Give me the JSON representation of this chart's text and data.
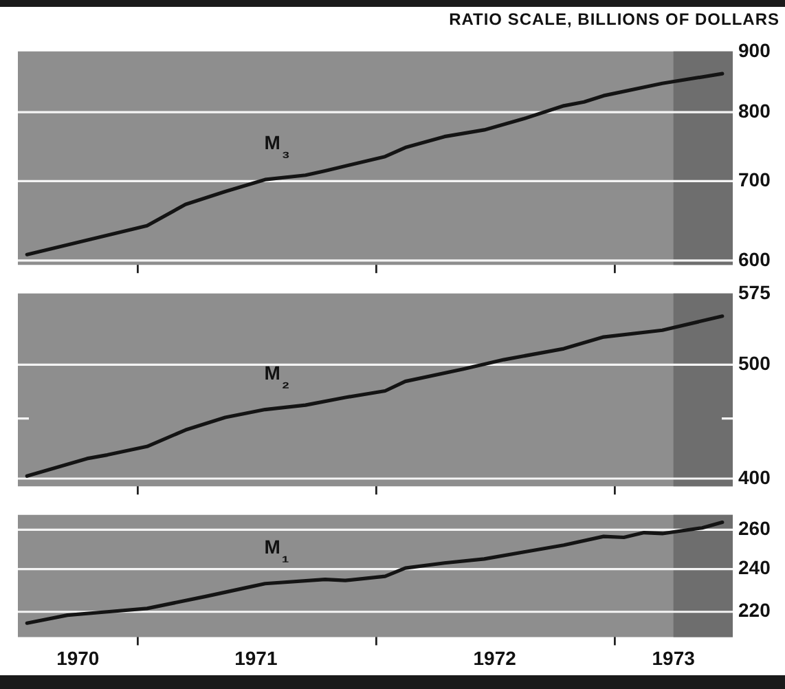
{
  "chart_data": [
    {
      "type": "line",
      "ylabel": "RATIO SCALE, BILLIONS OF DOLLARS",
      "series": [
        {
          "name": "M₃",
          "color": "#141414",
          "x": [
            "1970-07-15",
            "1971-01-15",
            "1971-03-15",
            "1971-05-15",
            "1971-07-15",
            "1971-09-15",
            "1971-10-15",
            "1972-01-15",
            "1972-02-15",
            "1972-04-15",
            "1972-06-15",
            "1972-08-15",
            "1972-10-15",
            "1972-11-15",
            "1972-12-15",
            "1973-03-15",
            "1973-06-15"
          ],
          "values": [
            607,
            642,
            669,
            686,
            702,
            708,
            714,
            734,
            747,
            763,
            773,
            790,
            810,
            816,
            826,
            846,
            862
          ]
        }
      ],
      "xlim": [
        "1970-07-01",
        "1973-07-01"
      ],
      "xticks": [
        {
          "value": "1971-01-01",
          "label": null
        },
        {
          "value": "1972-01-01",
          "label": null
        },
        {
          "value": "1973-01-01",
          "label": null
        }
      ],
      "ylim": [
        595,
        900
      ],
      "yticks": [
        600,
        700,
        800,
        900
      ],
      "log": "y",
      "grid": "y",
      "tick_labels": "y",
      "bands": [
        {
          "axis": "x",
          "from": "1973-04-01",
          "to": "1973-07-01",
          "color": "#6e6e6e"
        }
      ]
    },
    {
      "type": "line",
      "series": [
        {
          "name": "M₂",
          "color": "#141414",
          "x": [
            "1970-07-15",
            "1970-10-15",
            "1970-11-15",
            "1971-01-15",
            "1971-03-15",
            "1971-05-15",
            "1971-07-15",
            "1971-09-15",
            "1971-11-15",
            "1972-01-15",
            "1972-02-15",
            "1972-05-15",
            "1972-07-15",
            "1972-10-15",
            "1972-12-15",
            "1973-03-15",
            "1973-06-15"
          ],
          "values": [
            402,
            416,
            419,
            426,
            440,
            451,
            458,
            462,
            469,
            475,
            484,
            496,
            505,
            516,
            528,
            535,
            550
          ]
        }
      ],
      "xlim": [
        "1970-07-01",
        "1973-07-01"
      ],
      "xticks": [
        {
          "value": "1971-01-01",
          "label": null
        },
        {
          "value": "1972-01-01",
          "label": null
        },
        {
          "value": "1973-01-01",
          "label": null
        }
      ],
      "ylim": [
        394,
        575
      ],
      "yticks": [
        400,
        {
          "value": 450,
          "label": null
        },
        500,
        575
      ],
      "log": "y",
      "grid": "y",
      "tick_labels": "y",
      "bands": [
        {
          "axis": "x",
          "from": "1973-04-01",
          "to": "1973-07-01",
          "color": "#6e6e6e"
        }
      ]
    },
    {
      "type": "line",
      "series": [
        {
          "name": "M₁",
          "color": "#141414",
          "x": [
            "1970-07-15",
            "1970-09-15",
            "1970-11-15",
            "1971-01-15",
            "1971-04-15",
            "1971-06-15",
            "1971-07-15",
            "1971-10-15",
            "1971-11-15",
            "1972-01-15",
            "1972-02-15",
            "1972-04-15",
            "1972-06-15",
            "1972-08-15",
            "1972-10-15",
            "1972-12-15",
            "1973-01-15",
            "1973-02-15",
            "1973-03-15",
            "1973-05-15",
            "1973-06-15"
          ],
          "values": [
            215,
            218.5,
            220,
            221.5,
            227,
            231,
            233,
            235,
            234.5,
            236.5,
            240.5,
            243,
            245,
            248.5,
            252,
            256.5,
            256,
            258.5,
            258,
            261,
            264
          ]
        }
      ],
      "xlim": [
        "1970-07-01",
        "1973-07-01"
      ],
      "xticks": [
        {
          "value": "1970-10-01",
          "label": "1970"
        },
        {
          "value": "1971-01-01",
          "label": null
        },
        {
          "value": "1971-07-01",
          "label": "1971"
        },
        {
          "value": "1972-01-01",
          "label": null
        },
        {
          "value": "1972-07-01",
          "label": "1972"
        },
        {
          "value": "1973-01-01",
          "label": null
        },
        {
          "value": "1973-04-01",
          "label": "1973"
        }
      ],
      "ylim": [
        209,
        268
      ],
      "yticks": [
        220,
        240,
        260
      ],
      "log": "y",
      "grid": "y",
      "bands": [
        {
          "axis": "x",
          "from": "1973-04-01",
          "to": "1973-07-01",
          "color": "#6e6e6e"
        }
      ]
    }
  ]
}
